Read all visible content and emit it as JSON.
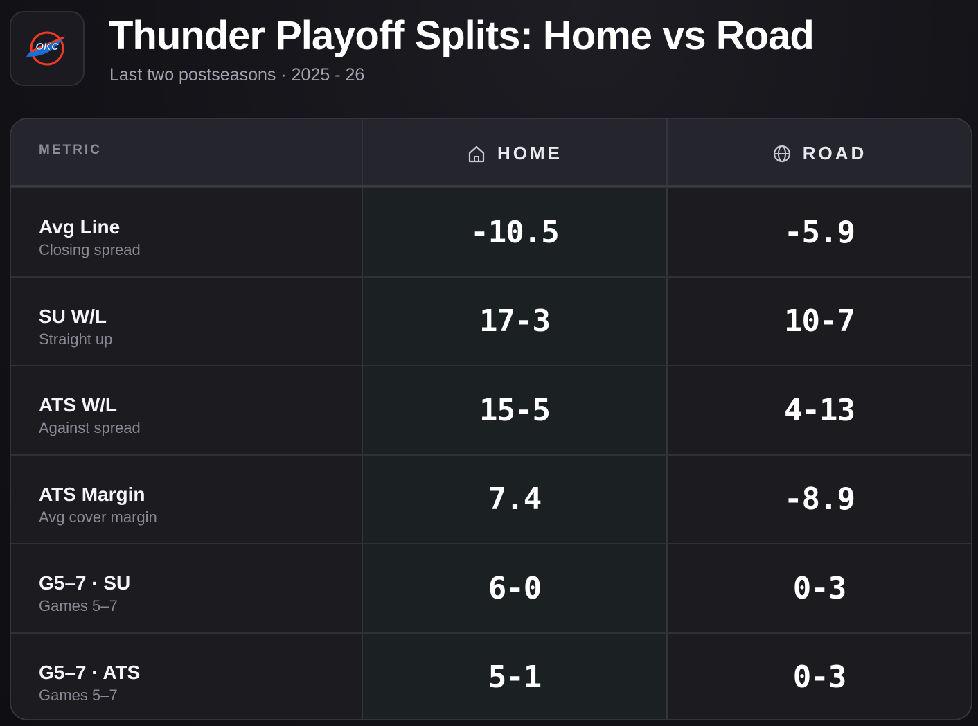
{
  "header": {
    "logo_icon": "okc-thunder-logo",
    "logo_text": "OKC",
    "title": "Thunder Playoff Splits: Home vs Road",
    "subtitle": "Last two postseasons · 2025 - 26"
  },
  "table": {
    "columns": {
      "metric": "METRIC",
      "home": "HOME",
      "home_icon": "home-icon",
      "road": "ROAD",
      "road_icon": "globe-icon"
    },
    "rows": [
      {
        "metric": "Avg Line",
        "sub": "Closing spread",
        "home": "-10.5",
        "road": "-5.9"
      },
      {
        "metric": "SU W/L",
        "sub": "Straight up",
        "home": "17-3",
        "road": "10-7"
      },
      {
        "metric": "ATS W/L",
        "sub": "Against spread",
        "home": "15-5",
        "road": "4-13"
      },
      {
        "metric": "ATS Margin",
        "sub": "Avg cover margin",
        "home": "7.4",
        "road": "-8.9"
      },
      {
        "metric": "G5–7 · SU",
        "sub": "Games 5–7",
        "home": "6-0",
        "road": "0-3"
      },
      {
        "metric": "G5–7 · ATS",
        "sub": "Games 5–7",
        "home": "5-1",
        "road": "0-3"
      }
    ]
  },
  "colors": {
    "background": "#131318",
    "card": "#1b1b20",
    "header_row": "#25252d",
    "home_column": "#1b2023",
    "logo_blue": "#1a6fd1",
    "logo_orange": "#ef3b24"
  }
}
